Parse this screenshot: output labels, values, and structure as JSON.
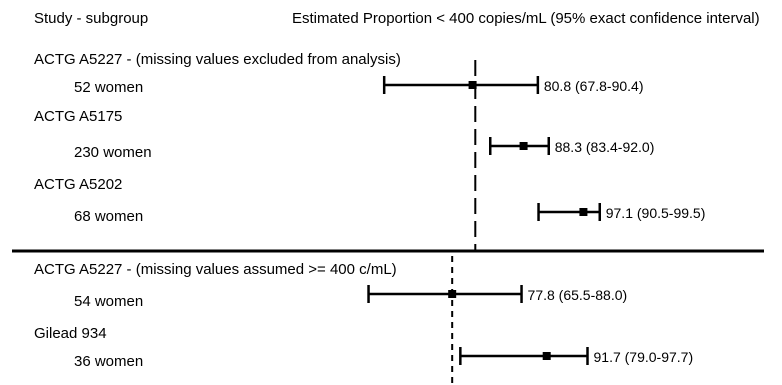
{
  "header": {
    "left": "Study - subgroup",
    "right": "Estimated Proportion < 400 copies/mL (95% exact confidence interval)"
  },
  "chart_data": {
    "type": "forest",
    "title": "",
    "xlabel": "Estimated Proportion < 400 copies/mL (95% exact confidence interval)",
    "ylabel": "",
    "units": "percent",
    "grid": false,
    "legend": "none",
    "sections": [
      {
        "reference_value": 81.2,
        "rows": [
          {
            "study": "ACTG A5227 - (missing values excluded from analysis)",
            "subgroup": "52 women",
            "estimate": 80.8,
            "ci_low": 67.8,
            "ci_high": 90.4,
            "value_label": "80.8 (67.8-90.4)"
          },
          {
            "study": "ACTG A5175",
            "subgroup": "230 women",
            "estimate": 88.3,
            "ci_low": 83.4,
            "ci_high": 92.0,
            "value_label": "88.3 (83.4-92.0)"
          },
          {
            "study": "ACTG A5202",
            "subgroup": "68 women",
            "estimate": 97.1,
            "ci_low": 90.5,
            "ci_high": 99.5,
            "value_label": "97.1 (90.5-99.5)"
          }
        ]
      },
      {
        "reference_value": 77.8,
        "rows": [
          {
            "study": "ACTG A5227 - (missing values assumed >= 400 c/mL)",
            "subgroup": "54 women",
            "estimate": 77.8,
            "ci_low": 65.5,
            "ci_high": 88.0,
            "value_label": "77.8 (65.5-88.0)"
          },
          {
            "study": "Gilead 934",
            "subgroup": "36 women",
            "estimate": 91.7,
            "ci_low": 79.0,
            "ci_high": 97.7,
            "value_label": "91.7 (79.0-97.7)"
          }
        ]
      }
    ]
  }
}
